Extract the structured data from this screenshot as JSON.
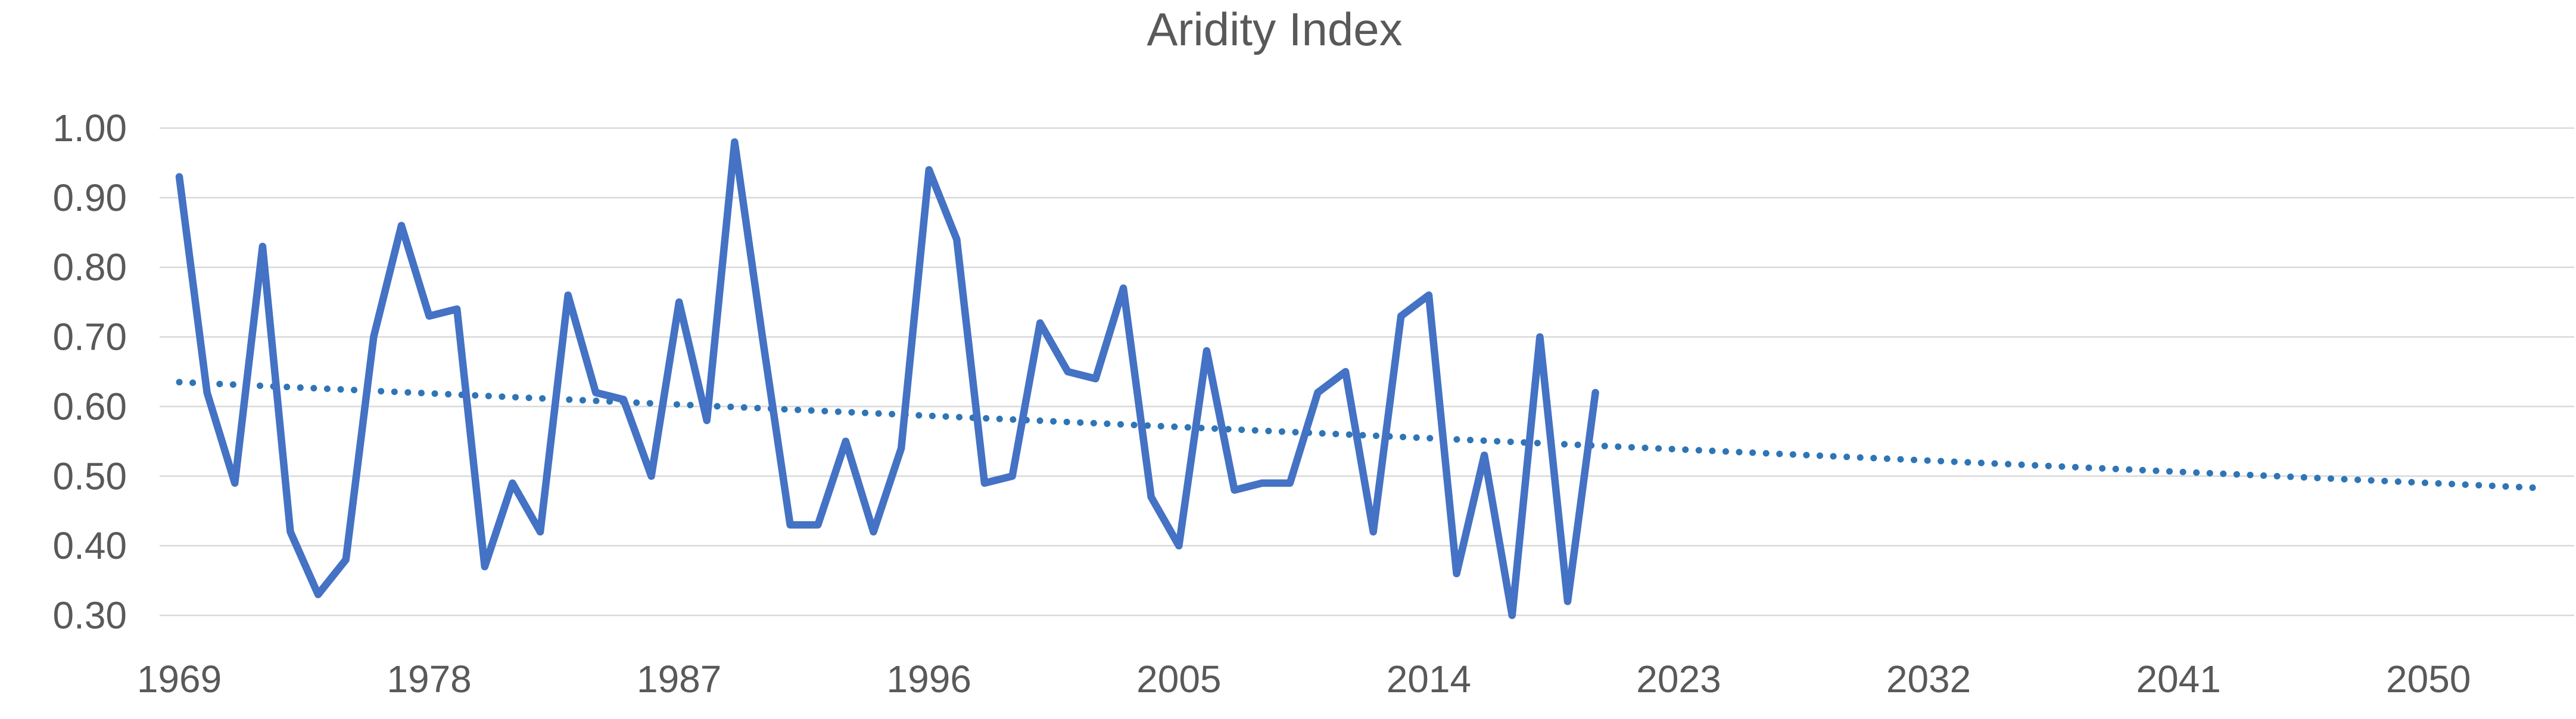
{
  "chart_data": {
    "type": "line",
    "title": "Aridity Index",
    "x_years": [
      1969,
      1970,
      1971,
      1972,
      1973,
      1974,
      1975,
      1976,
      1977,
      1978,
      1979,
      1980,
      1981,
      1982,
      1983,
      1984,
      1985,
      1986,
      1987,
      1988,
      1989,
      1990,
      1991,
      1992,
      1993,
      1994,
      1995,
      1996,
      1997,
      1998,
      1999,
      2000,
      2001,
      2002,
      2003,
      2004,
      2005,
      2006,
      2007,
      2008,
      2009,
      2010,
      2011,
      2012,
      2013,
      2014,
      2015,
      2016,
      2017,
      2018,
      2019,
      2020
    ],
    "series": [
      {
        "name": "Aridity Index",
        "values": [
          0.93,
          0.62,
          0.49,
          0.83,
          0.42,
          0.33,
          0.38,
          0.7,
          0.86,
          0.73,
          0.74,
          0.37,
          0.49,
          0.42,
          0.76,
          0.62,
          0.61,
          0.5,
          0.75,
          0.58,
          0.98,
          0.7,
          0.43,
          0.43,
          0.55,
          0.42,
          0.54,
          0.94,
          0.84,
          0.49,
          0.5,
          0.72,
          0.65,
          0.64,
          0.77,
          0.47,
          0.4,
          0.68,
          0.48,
          0.49,
          0.49,
          0.62,
          0.65,
          0.42,
          0.73,
          0.76,
          0.36,
          0.53,
          0.3,
          0.7,
          0.32,
          0.62
        ]
      }
    ],
    "trendline": {
      "style": "dotted",
      "x_start": 1969,
      "y_start": 0.635,
      "x_end": 2054,
      "y_end": 0.483
    },
    "y_tick_labels": [
      "1.00",
      "0.90",
      "0.80",
      "0.70",
      "0.60",
      "0.50",
      "0.40",
      "0.30"
    ],
    "x_tick_labels": [
      "1969",
      "1978",
      "1987",
      "1996",
      "2005",
      "2014",
      "2023",
      "2032",
      "2041",
      "2050"
    ],
    "ylim": [
      0.3,
      1.0
    ],
    "xlim_axis": [
      1969,
      2056
    ],
    "xlabel": "",
    "ylabel": "",
    "grid": "horizontal",
    "legend": "none",
    "colors": {
      "series_line": "#4472C4",
      "trendline": "#2E75B6",
      "gridline": "#D9D9D9",
      "text": "#595959",
      "background": "#FFFFFF"
    }
  }
}
